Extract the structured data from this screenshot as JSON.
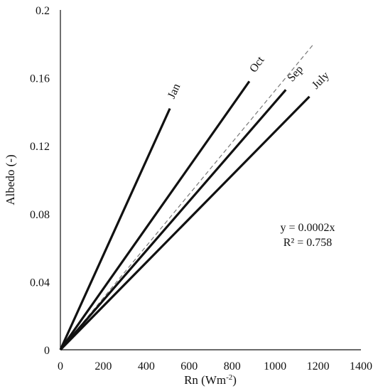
{
  "chart_data": {
    "type": "line",
    "title": "",
    "xlabel": "Rn (Wm",
    "xlabel_sup": "-2",
    "xlabel_suffix": ")",
    "ylabel": "Albedo (-)",
    "xlim": [
      0,
      1400
    ],
    "ylim": [
      0,
      0.2
    ],
    "x_ticks": [
      0,
      200,
      400,
      600,
      800,
      1000,
      1200,
      1400
    ],
    "x_tick_labels": [
      "0",
      "200",
      "400",
      "600",
      "800",
      "1000",
      "1200",
      "1400"
    ],
    "y_ticks": [
      0,
      0.04,
      0.08,
      0.12,
      0.16,
      0.2
    ],
    "y_tick_labels": [
      "0",
      "0.04",
      "0.08",
      "0.12",
      "0.16",
      "0.2"
    ],
    "grid": false,
    "legend": "none",
    "line_color": "#111111",
    "series": [
      {
        "name": "Jan",
        "x": [
          0,
          510
        ],
        "y": [
          0,
          0.142
        ]
      },
      {
        "name": "Oct",
        "x": [
          0,
          880
        ],
        "y": [
          0,
          0.158
        ]
      },
      {
        "name": "Sep",
        "x": [
          0,
          1050
        ],
        "y": [
          0,
          0.153
        ]
      },
      {
        "name": "July",
        "x": [
          0,
          1160
        ],
        "y": [
          0,
          0.149
        ]
      }
    ],
    "fit_line": {
      "style": "dashed",
      "color": "#777777",
      "x": [
        0,
        1180
      ],
      "y": [
        0,
        0.18
      ]
    },
    "annotations": {
      "equation": "y = 0.0002x",
      "r_squared": "R² = 0.758"
    }
  }
}
